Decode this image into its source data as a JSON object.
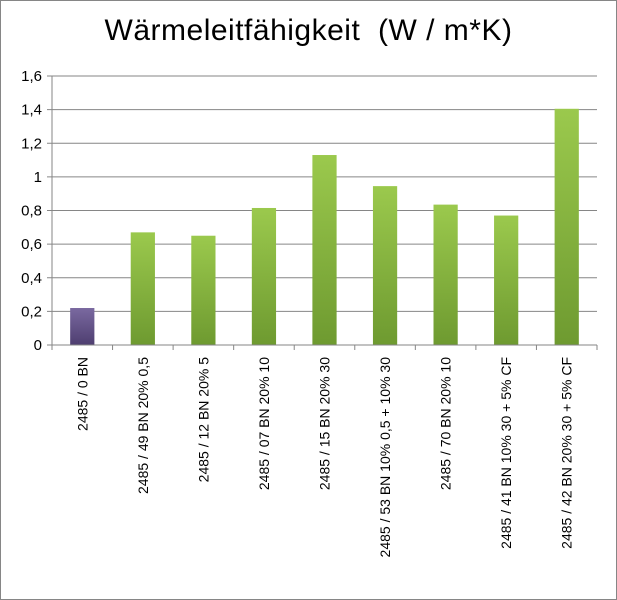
{
  "chart_data": {
    "type": "bar",
    "title": "Wärmeleitfähigkeit  (W / m*K)",
    "xlabel": "",
    "ylabel": "",
    "ylim": [
      0,
      1.6
    ],
    "yticks": [
      "0",
      "0,2",
      "0,4",
      "0,6",
      "0,8",
      "1",
      "1,2",
      "1,4",
      "1,6"
    ],
    "ytick_values": [
      0,
      0.2,
      0.4,
      0.6,
      0.8,
      1.0,
      1.2,
      1.4,
      1.6
    ],
    "grid": true,
    "legend": "none",
    "categories": [
      "2485 / 0 BN",
      "2485 / 49 BN 20% 0,5",
      "2485 / 12 BN 20% 5",
      "2485 / 07 BN 20% 10",
      "2485 / 15 BN 20% 30",
      "2485 / 53 BN 10% 0,5 + 10% 30",
      "2485 / 70 BN 20% 10",
      "2485 / 41 BN 10% 30 + 5% CF",
      "2485 / 42 BN 20% 30 + 5% CF"
    ],
    "values": [
      0.22,
      0.67,
      0.65,
      0.815,
      1.13,
      0.945,
      0.835,
      0.77,
      1.405
    ],
    "colors": {
      "first_bar": "#5b4a7f",
      "first_bar_top": "#7a69a0",
      "bars_top": "#9bc94d",
      "bars_bottom": "#6e9a30",
      "gridline": "#868686",
      "axis": "#868686"
    }
  }
}
